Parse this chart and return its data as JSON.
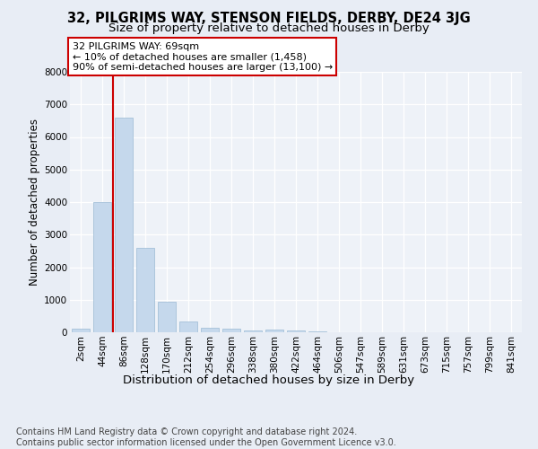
{
  "title1": "32, PILGRIMS WAY, STENSON FIELDS, DERBY, DE24 3JG",
  "title2": "Size of property relative to detached houses in Derby",
  "xlabel": "Distribution of detached houses by size in Derby",
  "ylabel": "Number of detached properties",
  "bar_labels": [
    "2sqm",
    "44sqm",
    "86sqm",
    "128sqm",
    "170sqm",
    "212sqm",
    "254sqm",
    "296sqm",
    "338sqm",
    "380sqm",
    "422sqm",
    "464sqm",
    "506sqm",
    "547sqm",
    "589sqm",
    "631sqm",
    "673sqm",
    "715sqm",
    "757sqm",
    "799sqm",
    "841sqm"
  ],
  "bar_heights": [
    100,
    4000,
    6600,
    2600,
    950,
    330,
    130,
    100,
    60,
    80,
    60,
    30,
    10,
    5,
    5,
    5,
    5,
    5,
    5,
    5,
    5
  ],
  "bar_color": "#c5d8ec",
  "bar_edgecolor": "#9bbad4",
  "vline_x": 1.5,
  "vline_color": "#cc0000",
  "annotation_line1": "32 PILGRIMS WAY: 69sqm",
  "annotation_line2": "← 10% of detached houses are smaller (1,458)",
  "annotation_line3": "90% of semi-detached houses are larger (13,100) →",
  "annotation_box_color": "#cc0000",
  "ylim": [
    0,
    8000
  ],
  "yticks": [
    0,
    1000,
    2000,
    3000,
    4000,
    5000,
    6000,
    7000,
    8000
  ],
  "bg_color": "#e8edf5",
  "plot_bg_color": "#eef2f8",
  "footer_text": "Contains HM Land Registry data © Crown copyright and database right 2024.\nContains public sector information licensed under the Open Government Licence v3.0.",
  "title1_fontsize": 10.5,
  "title2_fontsize": 9.5,
  "xlabel_fontsize": 9.5,
  "ylabel_fontsize": 8.5,
  "tick_fontsize": 7.5,
  "annot_fontsize": 8,
  "footer_fontsize": 7
}
